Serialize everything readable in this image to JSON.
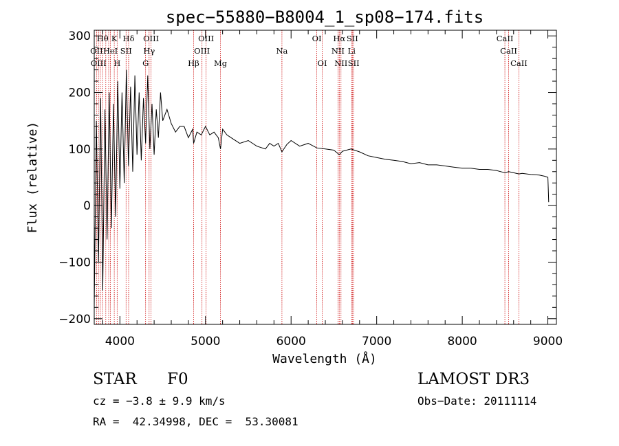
{
  "chart_data": {
    "type": "line",
    "title": "spec−55880−B8004_1_sp08−174.fits",
    "xlabel": "Wavelength (Å)",
    "ylabel": "Flux (relative)",
    "xlim": [
      3700,
      9100
    ],
    "ylim": [
      -210,
      310
    ],
    "xticks": [
      4000,
      5000,
      6000,
      7000,
      8000,
      9000
    ],
    "yticks": [
      -200,
      -100,
      0,
      100,
      200,
      300
    ],
    "ytick_labels": [
      "−200",
      "−100",
      "0",
      "100",
      "200",
      "300"
    ],
    "series": [
      {
        "name": "flux",
        "x": [
          3700,
          3725,
          3750,
          3775,
          3800,
          3825,
          3850,
          3875,
          3900,
          3925,
          3950,
          3975,
          4000,
          4025,
          4050,
          4075,
          4100,
          4125,
          4150,
          4175,
          4200,
          4225,
          4250,
          4275,
          4300,
          4325,
          4350,
          4375,
          4400,
          4425,
          4450,
          4475,
          4500,
          4550,
          4600,
          4650,
          4700,
          4750,
          4800,
          4850,
          4861,
          4900,
          4950,
          5000,
          5050,
          5100,
          5150,
          5175,
          5200,
          5250,
          5300,
          5400,
          5500,
          5600,
          5700,
          5750,
          5800,
          5850,
          5893,
          5950,
          6000,
          6100,
          6200,
          6300,
          6400,
          6500,
          6563,
          6600,
          6700,
          6800,
          6900,
          7000,
          7100,
          7200,
          7300,
          7400,
          7500,
          7600,
          7700,
          7800,
          7900,
          8000,
          8100,
          8200,
          8300,
          8400,
          8450,
          8500,
          8542,
          8600,
          8662,
          8700,
          8800,
          8900,
          8960,
          9000,
          9010
        ],
        "values": [
          -180,
          150,
          -100,
          190,
          -150,
          170,
          -60,
          200,
          -40,
          180,
          -20,
          220,
          30,
          200,
          40,
          240,
          70,
          210,
          60,
          230,
          90,
          200,
          80,
          190,
          110,
          230,
          100,
          180,
          90,
          170,
          120,
          200,
          150,
          170,
          145,
          130,
          140,
          140,
          120,
          135,
          110,
          130,
          125,
          140,
          125,
          130,
          120,
          100,
          135,
          125,
          120,
          110,
          115,
          105,
          100,
          110,
          105,
          110,
          95,
          108,
          115,
          105,
          110,
          102,
          100,
          98,
          90,
          96,
          100,
          95,
          88,
          85,
          82,
          80,
          78,
          74,
          76,
          72,
          72,
          70,
          68,
          66,
          66,
          64,
          64,
          62,
          60,
          58,
          60,
          58,
          56,
          57,
          55,
          54,
          52,
          50,
          6
        ]
      }
    ],
    "line_marker_wavelengths": [
      3727,
      3750,
      3771,
      3798,
      3835,
      3869,
      3889,
      3934,
      3968,
      4072,
      4102,
      4300,
      4341,
      4364,
      4861,
      4959,
      5007,
      5175,
      5893,
      6300,
      6364,
      6548,
      6563,
      6583,
      6708,
      6716,
      6731,
      8498,
      8542,
      8662
    ],
    "line_labels": [
      {
        "text": "Hθ",
        "wavelength": 3798,
        "row": 1
      },
      {
        "text": "K",
        "wavelength": 3934,
        "row": 1
      },
      {
        "text": "Hδ",
        "wavelength": 4102,
        "row": 1
      },
      {
        "text": "OIII",
        "wavelength": 4364,
        "row": 1
      },
      {
        "text": "OIII",
        "wavelength": 5007,
        "row": 1
      },
      {
        "text": "OI",
        "wavelength": 6300,
        "row": 1
      },
      {
        "text": "Hα",
        "wavelength": 6563,
        "row": 1
      },
      {
        "text": "SII",
        "wavelength": 6716,
        "row": 1
      },
      {
        "text": "CaII",
        "wavelength": 8498,
        "row": 1
      },
      {
        "text": "OII",
        "wavelength": 3727,
        "row": 2
      },
      {
        "text": "HeI",
        "wavelength": 3889,
        "row": 2
      },
      {
        "text": "SII",
        "wavelength": 4072,
        "row": 2
      },
      {
        "text": "Hγ",
        "wavelength": 4341,
        "row": 2
      },
      {
        "text": "OIII",
        "wavelength": 4959,
        "row": 2
      },
      {
        "text": "Na",
        "wavelength": 5893,
        "row": 2
      },
      {
        "text": "NII",
        "wavelength": 6548,
        "row": 2
      },
      {
        "text": "Li",
        "wavelength": 6708,
        "row": 2
      },
      {
        "text": "CaII",
        "wavelength": 8542,
        "row": 2
      },
      {
        "text": "OIII",
        "wavelength": 3750,
        "row": 3
      },
      {
        "text": "H",
        "wavelength": 3968,
        "row": 3
      },
      {
        "text": "G",
        "wavelength": 4300,
        "row": 3
      },
      {
        "text": "Hβ",
        "wavelength": 4861,
        "row": 3
      },
      {
        "text": "Mg",
        "wavelength": 5175,
        "row": 3
      },
      {
        "text": "OI",
        "wavelength": 6364,
        "row": 3
      },
      {
        "text": "NII",
        "wavelength": 6583,
        "row": 3
      },
      {
        "text": "SII",
        "wavelength": 6731,
        "row": 3
      },
      {
        "text": "CaII",
        "wavelength": 8662,
        "row": 3
      }
    ],
    "colors": {
      "spectrum": "#000000",
      "line_markers": "#cc0000",
      "axes": "#000000"
    }
  },
  "info": {
    "class": "STAR",
    "subclass": "F0",
    "survey": "LAMOST DR3",
    "cz": "cz = −3.8 ± 9.9 km/s",
    "obs_date": "Obs−Date: 20111114",
    "coords": "RA =  42.34998, DEC =  53.30081"
  }
}
